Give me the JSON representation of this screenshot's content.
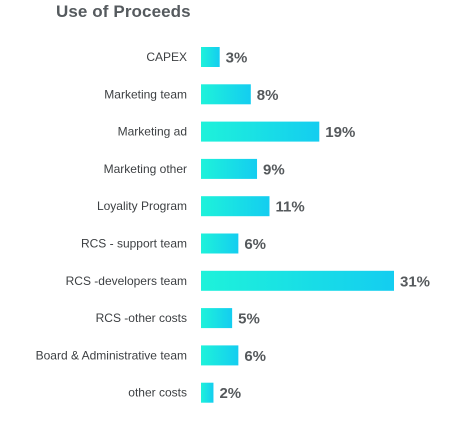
{
  "chart_data": {
    "type": "bar",
    "orientation": "horizontal",
    "title": "Use of Proceeds",
    "categories": [
      "CAPEX",
      "Marketing team",
      "Marketing ad",
      "Marketing other",
      "Loyality Program",
      "RCS - support team",
      "RCS -developers team",
      "RCS -other costs",
      "Board & Administrative team",
      "other costs"
    ],
    "values": [
      3,
      8,
      19,
      9,
      11,
      6,
      31,
      5,
      6,
      2
    ],
    "value_labels": [
      "3%",
      "8%",
      "19%",
      "9%",
      "11%",
      "6%",
      "31%",
      "5%",
      "6%",
      "2%"
    ],
    "xlim": [
      0,
      31
    ],
    "grid": false,
    "legend": "none",
    "colors": {
      "bar_start": "#1ef2da",
      "bar_end": "#14cdf0",
      "title": "#555a5e",
      "category_text": "#3c3f42",
      "value_text": "#55595c"
    }
  }
}
